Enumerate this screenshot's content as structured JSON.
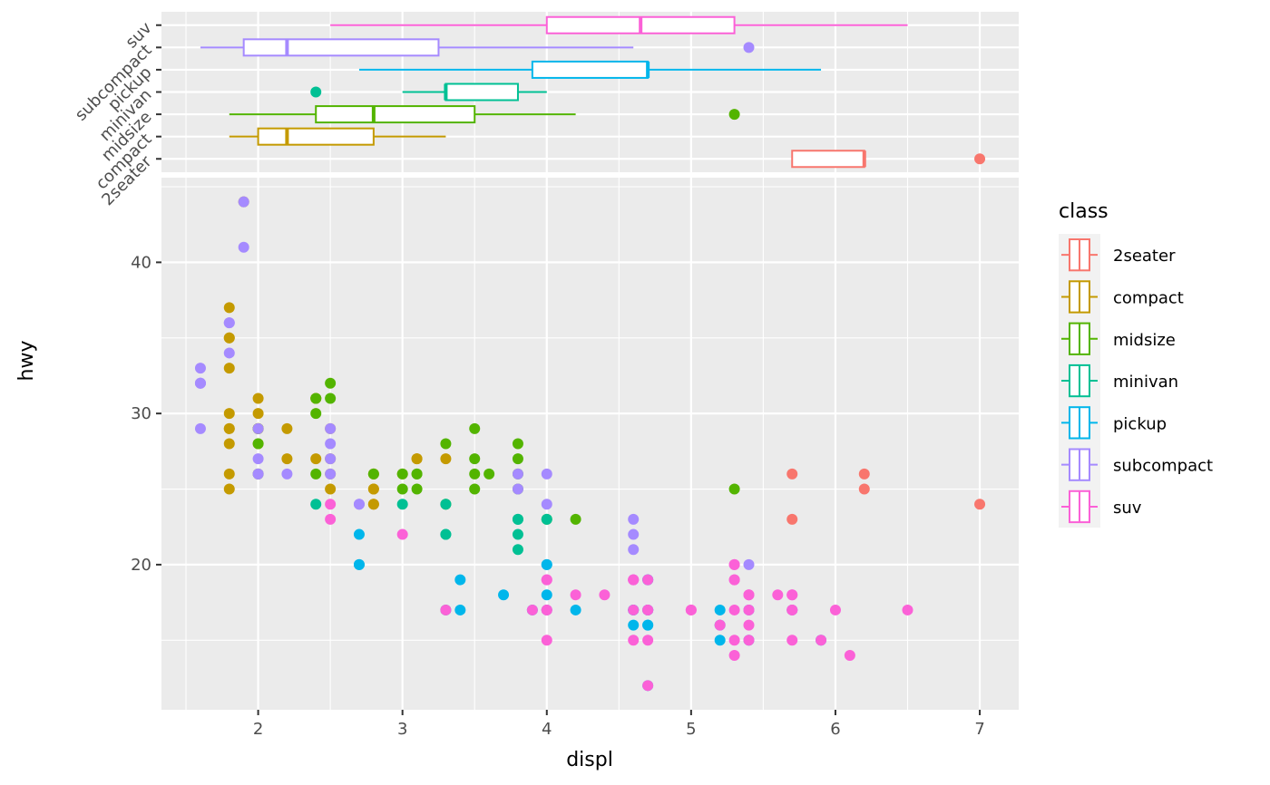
{
  "chart_data": [
    {
      "type": "boxplot",
      "orientation": "horizontal",
      "xlim": [
        1.33,
        7.27
      ],
      "categories": [
        "2seater",
        "compact",
        "midsize",
        "minivan",
        "pickup",
        "subcompact",
        "suv"
      ],
      "boxes": [
        {
          "class": "2seater",
          "min": 5.7,
          "q1": 5.7,
          "median": 6.2,
          "q3": 6.2,
          "max": 6.2,
          "outliers": [
            7.0
          ]
        },
        {
          "class": "compact",
          "min": 1.8,
          "q1": 2.0,
          "median": 2.2,
          "q3": 2.8,
          "max": 3.3,
          "outliers": []
        },
        {
          "class": "midsize",
          "min": 1.8,
          "q1": 2.4,
          "median": 2.8,
          "q3": 3.5,
          "max": 4.2,
          "outliers": [
            5.3
          ]
        },
        {
          "class": "minivan",
          "min": 3.0,
          "q1": 3.3,
          "median": 3.3,
          "q3": 3.8,
          "max": 4.0,
          "outliers": [
            2.4
          ]
        },
        {
          "class": "pickup",
          "min": 2.7,
          "q1": 3.9,
          "median": 4.7,
          "q3": 4.7,
          "max": 5.9,
          "outliers": []
        },
        {
          "class": "subcompact",
          "min": 1.6,
          "q1": 1.9,
          "median": 2.2,
          "q3": 3.25,
          "max": 4.6,
          "outliers": [
            5.4
          ]
        },
        {
          "class": "suv",
          "min": 2.5,
          "q1": 4.0,
          "median": 4.65,
          "q3": 5.3,
          "max": 6.5,
          "outliers": []
        }
      ],
      "xlabel": "",
      "ylabel": ""
    },
    {
      "type": "scatter",
      "xlabel": "displ",
      "ylabel": "hwy",
      "xlim": [
        1.33,
        7.27
      ],
      "ylim": [
        10.4,
        45.6
      ],
      "xticks": [
        2,
        3,
        4,
        5,
        6,
        7
      ],
      "yticks": [
        20,
        30,
        40
      ],
      "grid": true,
      "legend": {
        "title": "class",
        "placement": "right"
      },
      "series": [
        {
          "name": "2seater",
          "points": [
            [
              5.7,
              26
            ],
            [
              5.7,
              23
            ],
            [
              6.2,
              26
            ],
            [
              6.2,
              25
            ],
            [
              7.0,
              24
            ]
          ]
        },
        {
          "name": "compact",
          "points": [
            [
              1.8,
              29
            ],
            [
              1.8,
              29
            ],
            [
              2.0,
              31
            ],
            [
              2.0,
              30
            ],
            [
              2.8,
              26
            ],
            [
              2.8,
              26
            ],
            [
              3.1,
              27
            ],
            [
              1.8,
              26
            ],
            [
              1.8,
              25
            ],
            [
              1.8,
              28
            ],
            [
              2.0,
              28
            ],
            [
              2.0,
              29
            ],
            [
              2.8,
              25
            ],
            [
              2.8,
              25
            ],
            [
              3.1,
              27
            ],
            [
              2.2,
              27
            ],
            [
              2.2,
              29
            ],
            [
              2.4,
              31
            ],
            [
              2.4,
              31
            ],
            [
              3.0,
              26
            ],
            [
              3.3,
              27
            ],
            [
              2.4,
              27
            ],
            [
              2.5,
              25
            ],
            [
              2.5,
              27
            ],
            [
              1.8,
              30
            ],
            [
              1.8,
              33
            ],
            [
              1.8,
              35
            ],
            [
              1.8,
              37
            ],
            [
              1.8,
              35
            ],
            [
              2.0,
              29
            ],
            [
              2.0,
              26
            ],
            [
              2.0,
              29
            ],
            [
              2.0,
              29
            ],
            [
              2.8,
              24
            ],
            [
              2.8,
              24
            ],
            [
              1.9,
              44
            ],
            [
              2.5,
              29
            ],
            [
              2.5,
              26
            ]
          ]
        },
        {
          "name": "midsize",
          "points": [
            [
              2.8,
              26
            ],
            [
              3.1,
              25
            ],
            [
              4.2,
              23
            ],
            [
              2.4,
              30
            ],
            [
              2.4,
              31
            ],
            [
              2.4,
              26
            ],
            [
              2.5,
              32
            ],
            [
              2.5,
              31
            ],
            [
              3.0,
              25
            ],
            [
              3.0,
              26
            ],
            [
              3.1,
              26
            ],
            [
              3.3,
              28
            ],
            [
              3.3,
              24
            ],
            [
              3.5,
              29
            ],
            [
              3.5,
              27
            ],
            [
              3.5,
              26
            ],
            [
              3.6,
              26
            ],
            [
              3.8,
              25
            ],
            [
              3.8,
              28
            ],
            [
              3.8,
              27
            ],
            [
              2.0,
              28
            ],
            [
              2.0,
              29
            ],
            [
              2.0,
              26
            ],
            [
              5.3,
              25
            ],
            [
              3.5,
              25
            ],
            [
              3.8,
              26
            ],
            [
              4.0,
              23
            ],
            [
              3.1,
              26
            ]
          ]
        },
        {
          "name": "minivan",
          "points": [
            [
              2.4,
              24
            ],
            [
              3.0,
              24
            ],
            [
              3.3,
              22
            ],
            [
              3.3,
              24
            ],
            [
              3.3,
              17
            ],
            [
              3.3,
              22
            ],
            [
              3.8,
              21
            ],
            [
              3.8,
              23
            ],
            [
              3.8,
              23
            ],
            [
              4.0,
              23
            ],
            [
              3.8,
              22
            ]
          ]
        },
        {
          "name": "pickup",
          "points": [
            [
              2.7,
              20
            ],
            [
              2.7,
              22
            ],
            [
              3.4,
              17
            ],
            [
              3.4,
              19
            ],
            [
              4.0,
              18
            ],
            [
              4.0,
              20
            ],
            [
              4.7,
              17
            ],
            [
              4.7,
              16
            ],
            [
              4.7,
              16
            ],
            [
              4.7,
              12
            ],
            [
              5.2,
              15
            ],
            [
              5.2,
              16
            ],
            [
              5.7,
              17
            ],
            [
              5.9,
              15
            ],
            [
              4.7,
              17
            ],
            [
              4.7,
              17
            ],
            [
              5.2,
              17
            ],
            [
              5.4,
              15
            ],
            [
              4.0,
              20
            ],
            [
              4.0,
              17
            ],
            [
              4.2,
              17
            ],
            [
              4.6,
              16
            ],
            [
              4.6,
              17
            ],
            [
              5.4,
              17
            ],
            [
              4.6,
              17
            ],
            [
              3.7,
              18
            ],
            [
              3.9,
              17
            ],
            [
              4.7,
              19
            ],
            [
              4.7,
              19
            ],
            [
              2.7,
              20
            ]
          ]
        },
        {
          "name": "subcompact",
          "points": [
            [
              3.8,
              26
            ],
            [
              3.8,
              25
            ],
            [
              4.0,
              26
            ],
            [
              4.0,
              24
            ],
            [
              4.6,
              21
            ],
            [
              4.6,
              22
            ],
            [
              4.6,
              23
            ],
            [
              5.4,
              20
            ],
            [
              1.6,
              33
            ],
            [
              1.6,
              32
            ],
            [
              1.6,
              32
            ],
            [
              1.6,
              29
            ],
            [
              1.6,
              32
            ],
            [
              1.8,
              34
            ],
            [
              1.8,
              36
            ],
            [
              1.8,
              36
            ],
            [
              2.0,
              29
            ],
            [
              2.0,
              26
            ],
            [
              2.2,
              26
            ],
            [
              2.5,
              27
            ],
            [
              2.5,
              29
            ],
            [
              2.5,
              28
            ],
            [
              2.7,
              24
            ],
            [
              2.7,
              24
            ],
            [
              1.9,
              44
            ],
            [
              1.9,
              41
            ],
            [
              2.0,
              26
            ],
            [
              2.5,
              26
            ],
            [
              5.4,
              17
            ],
            [
              2.0,
              27
            ],
            [
              4.6,
              19
            ]
          ]
        },
        {
          "name": "suv",
          "points": [
            [
              5.3,
              20
            ],
            [
              5.3,
              15
            ],
            [
              5.3,
              20
            ],
            [
              5.7,
              17
            ],
            [
              6.0,
              17
            ],
            [
              5.7,
              15
            ],
            [
              5.7,
              18
            ],
            [
              6.5,
              17
            ],
            [
              4.7,
              17
            ],
            [
              4.7,
              12
            ],
            [
              4.7,
              17
            ],
            [
              5.2,
              16
            ],
            [
              5.7,
              18
            ],
            [
              5.9,
              15
            ],
            [
              4.6,
              19
            ],
            [
              5.4,
              17
            ],
            [
              5.4,
              18
            ],
            [
              4.0,
              19
            ],
            [
              4.0,
              17
            ],
            [
              4.6,
              19
            ],
            [
              5.0,
              17
            ],
            [
              4.2,
              18
            ],
            [
              4.4,
              18
            ],
            [
              4.6,
              17
            ],
            [
              5.4,
              18
            ],
            [
              5.4,
              16
            ],
            [
              5.6,
              18
            ],
            [
              4.7,
              15
            ],
            [
              4.7,
              19
            ],
            [
              5.7,
              17
            ],
            [
              6.1,
              14
            ],
            [
              5.3,
              14
            ],
            [
              5.3,
              19
            ],
            [
              3.3,
              17
            ],
            [
              3.9,
              17
            ],
            [
              4.0,
              19
            ],
            [
              4.0,
              15
            ],
            [
              4.6,
              15
            ],
            [
              5.0,
              17
            ],
            [
              4.0,
              17
            ],
            [
              2.5,
              24
            ],
            [
              2.5,
              23
            ],
            [
              3.0,
              22
            ],
            [
              5.3,
              19
            ],
            [
              5.3,
              17
            ],
            [
              5.4,
              15
            ]
          ]
        }
      ]
    }
  ],
  "colors": {
    "2seater": "#F8766D",
    "compact": "#C49A00",
    "midsize": "#53B400",
    "minivan": "#00C094",
    "pickup": "#00B6EB",
    "subcompact": "#A58AFF",
    "suv": "#FB61D7",
    "panel_bg": "#EBEBEB",
    "grid": "#FFFFFF"
  }
}
